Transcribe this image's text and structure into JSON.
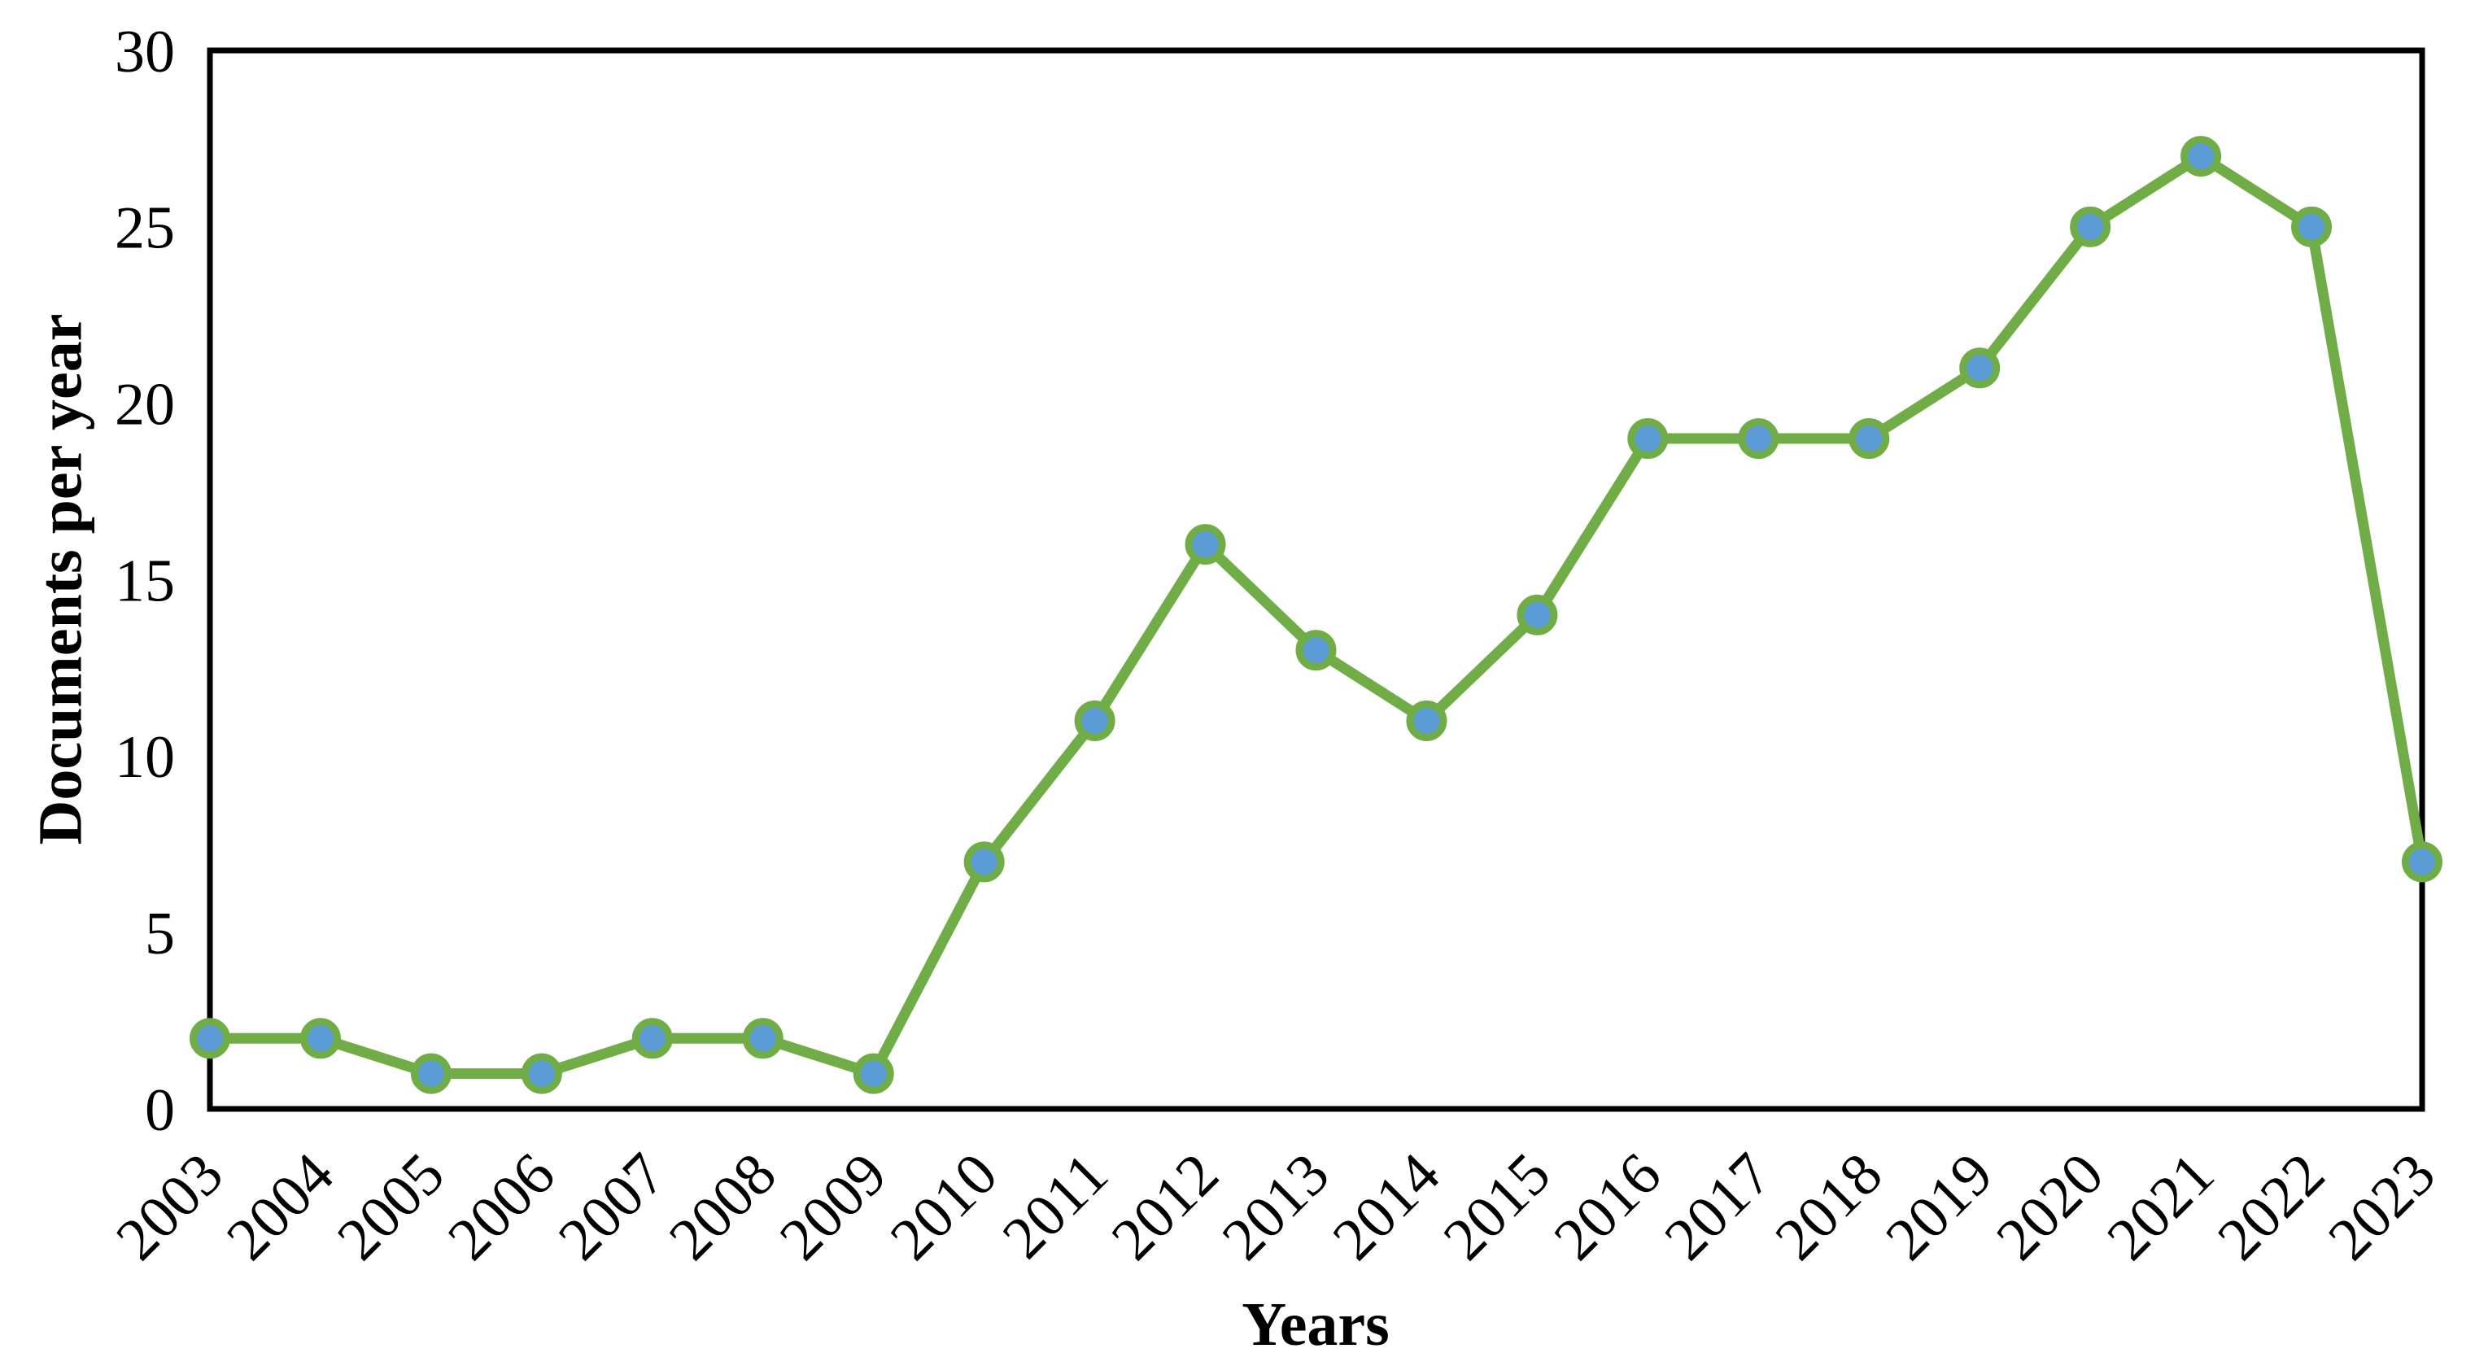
{
  "figure": {
    "background": "#ffffff",
    "border_color": "#000000"
  },
  "chart_data": {
    "type": "line",
    "title": "",
    "xlabel": "Years",
    "ylabel": "Documents per year",
    "categories": [
      "2003",
      "2004",
      "2005",
      "2006",
      "2007",
      "2008",
      "2009",
      "2010",
      "2011",
      "2012",
      "2013",
      "2014",
      "2015",
      "2016",
      "2017",
      "2018",
      "2019",
      "2020",
      "2021",
      "2022",
      "2023"
    ],
    "series": [
      {
        "name": "Documents per year",
        "values": [
          2,
          2,
          1,
          1,
          2,
          2,
          1,
          7,
          11,
          16,
          13,
          11,
          14,
          19,
          19,
          19,
          21,
          25,
          27,
          25,
          7
        ]
      }
    ],
    "ylim": [
      0,
      30
    ],
    "yticks": [
      0,
      5,
      10,
      15,
      20,
      25,
      30
    ],
    "grid": false,
    "legend": "none",
    "x_tick_rotation_deg": -45,
    "line_color": "#70AD47",
    "marker_fill": "#5B9BD5",
    "marker_outline": "#70AD47",
    "axis_color": "#000000"
  }
}
